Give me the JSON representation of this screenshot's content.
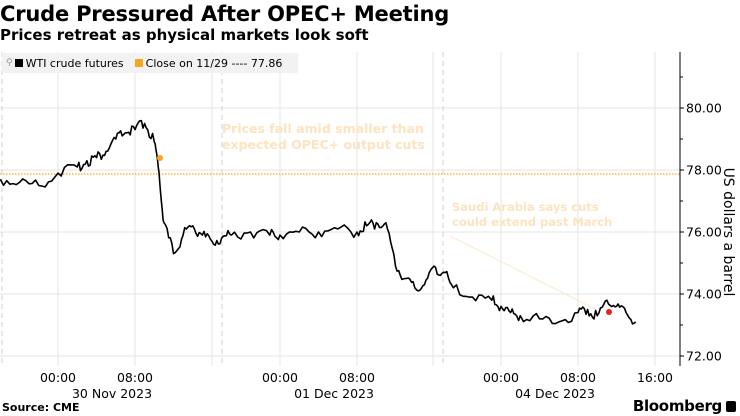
{
  "header": {
    "title": "Crude Pressured After OPEC+ Meeting",
    "subtitle": "Prices retreat as physical markets look soft"
  },
  "legend": {
    "series_label": "WTI crude futures",
    "close_label": "Close on 11/29 ---- 77.86",
    "series_color": "#000000",
    "close_color": "#f5a623"
  },
  "annotations": {
    "a1_line1": "Prices fall amid smaller than",
    "a1_line2": "expected OPEC+ output cuts",
    "a2_line1": "Saudi Arabia says cuts",
    "a2_line2": "could extend past March"
  },
  "axis": {
    "ylabel": "US dollars a barrel",
    "yticks": [
      "80.00",
      "78.00",
      "76.00",
      "74.00",
      "72.00"
    ],
    "xticks": [
      "00:00",
      "08:00",
      "00:00",
      "08:00",
      "00:00",
      "08:00",
      "16:00"
    ],
    "xdates": [
      "30 Nov 2023",
      "01 Dec 2023",
      "04 Dec 2023"
    ]
  },
  "footer": {
    "source": "Source: CME",
    "brand": "Bloomberg"
  },
  "chart_data": {
    "type": "line",
    "title": "Crude Pressured After OPEC+ Meeting",
    "subtitle": "Prices retreat as physical markets look soft",
    "xlabel": "",
    "ylabel": "US dollars a barrel",
    "ylim": [
      72,
      82
    ],
    "yticks": [
      72,
      74,
      76,
      78,
      80
    ],
    "grid": true,
    "legend_position": "top-left",
    "reference_line": {
      "label": "Close on 11/29",
      "value": 77.86,
      "color": "#f5a623"
    },
    "series": [
      {
        "name": "WTI crude futures",
        "x": [
          "11-29 18:00",
          "11-29 20:00",
          "11-29 22:00",
          "11-30 00:00",
          "11-30 02:00",
          "11-30 03:00",
          "11-30 04:00",
          "11-30 05:00",
          "11-30 06:00",
          "11-30 07:00",
          "11-30 08:00",
          "11-30 09:00",
          "11-30 10:00",
          "11-30 10:30",
          "11-30 11:00",
          "11-30 12:00",
          "11-30 13:00",
          "11-30 14:00",
          "11-30 15:00",
          "11-30 16:00",
          "11-30 17:00",
          "11-30 18:00",
          "11-30 20:00",
          "11-30 22:00",
          "12-01 00:00",
          "12-01 02:00",
          "12-01 04:00",
          "12-01 06:00",
          "12-01 08:00",
          "12-01 09:00",
          "12-01 10:00",
          "12-01 11:00",
          "12-01 12:00",
          "12-01 13:00",
          "12-01 14:00",
          "12-01 15:00",
          "12-01 16:00",
          "12-01 17:00",
          "12-01 18:00",
          "12-01 20:00",
          "12-01 22:00",
          "12-04 00:00",
          "12-04 01:00",
          "12-04 02:00",
          "12-04 04:00",
          "12-04 06:00",
          "12-04 08:00",
          "12-04 09:00",
          "12-04 10:00",
          "12-04 11:00",
          "12-04 12:00",
          "12-04 13:00",
          "12-04 14:00"
        ],
        "values": [
          77.7,
          77.6,
          77.5,
          77.9,
          78.1,
          78.3,
          78.4,
          78.6,
          79.0,
          79.2,
          79.3,
          79.5,
          78.9,
          77.9,
          76.3,
          75.3,
          75.9,
          76.2,
          75.9,
          75.7,
          75.8,
          75.9,
          76.0,
          75.9,
          75.9,
          76.0,
          76.0,
          76.1,
          76.0,
          76.2,
          76.3,
          76.3,
          74.9,
          74.5,
          74.2,
          74.3,
          74.9,
          74.7,
          74.2,
          73.9,
          73.8,
          73.6,
          73.4,
          73.3,
          73.2,
          73.1,
          73.4,
          73.5,
          73.3,
          73.8,
          73.6,
          73.4,
          73.1
        ]
      }
    ],
    "markers": [
      {
        "label": "Prices fall amid smaller than expected OPEC+ output cuts",
        "x": "11-30 10:30",
        "value": 78.4,
        "color": "#f5a623"
      },
      {
        "label": "Saudi Arabia says cuts could extend past March",
        "x": "12-04 11:30",
        "value": 73.4,
        "color": "#e8221b"
      }
    ]
  }
}
